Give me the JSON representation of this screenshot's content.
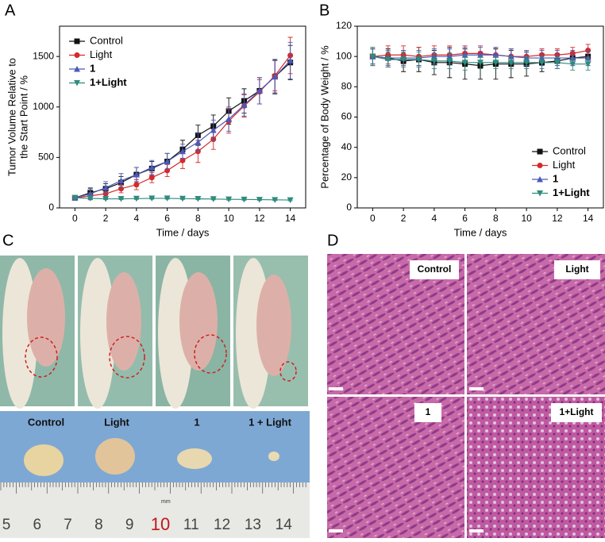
{
  "panel_labels": [
    "A",
    "B",
    "C",
    "D"
  ],
  "chart_data": [
    {
      "type": "line",
      "xlabel": "Time / days",
      "ylabel": [
        "Tumor Volume Relative to",
        "the Start Point / %"
      ],
      "x": [
        0,
        1,
        2,
        3,
        4,
        5,
        6,
        7,
        8,
        9,
        10,
        11,
        12,
        13,
        14
      ],
      "xlim": [
        -1,
        15
      ],
      "xticks": [
        0,
        2,
        4,
        6,
        8,
        10,
        12,
        14
      ],
      "ylim": [
        0,
        1800
      ],
      "yticks": [
        0,
        500,
        1000,
        1500
      ],
      "legend": "top-left",
      "series": [
        {
          "name": "Control",
          "color": "#111111",
          "marker": "square",
          "values": [
            100,
            150,
            190,
            250,
            330,
            390,
            460,
            580,
            720,
            810,
            960,
            1060,
            1160,
            1300,
            1440
          ],
          "errors": [
            15,
            40,
            50,
            60,
            70,
            70,
            80,
            90,
            100,
            110,
            130,
            120,
            130,
            170,
            170
          ]
        },
        {
          "name": "Light",
          "color": "#d42a2a",
          "marker": "circle",
          "values": [
            100,
            120,
            140,
            190,
            230,
            300,
            370,
            470,
            560,
            680,
            860,
            1010,
            1150,
            1310,
            1510
          ],
          "errors": [
            15,
            30,
            35,
            40,
            50,
            50,
            60,
            80,
            110,
            100,
            120,
            110,
            120,
            150,
            180
          ]
        },
        {
          "name": "1",
          "color": "#4a5ab8",
          "marker": "triangle-up",
          "values": [
            100,
            140,
            200,
            270,
            330,
            400,
            460,
            560,
            650,
            770,
            880,
            1020,
            1160,
            1300,
            1460
          ],
          "errors": [
            15,
            60,
            60,
            70,
            70,
            70,
            80,
            70,
            90,
            100,
            120,
            110,
            130,
            160,
            180
          ]
        },
        {
          "name": "1+Light",
          "color": "#2e8c7c",
          "marker": "triangle-down",
          "values": [
            100,
            95,
            90,
            90,
            92,
            95,
            95,
            92,
            90,
            88,
            85,
            84,
            82,
            80,
            78
          ],
          "errors": [
            8,
            10,
            8,
            8,
            8,
            8,
            8,
            8,
            8,
            8,
            8,
            8,
            8,
            8,
            8
          ]
        }
      ]
    },
    {
      "type": "line",
      "xlabel": "Time / days",
      "ylabel": [
        "Percentage of Body Weight / %"
      ],
      "x": [
        0,
        1,
        2,
        3,
        4,
        5,
        6,
        7,
        8,
        9,
        10,
        11,
        12,
        13,
        14
      ],
      "xlim": [
        -1,
        15
      ],
      "xticks": [
        0,
        2,
        4,
        6,
        8,
        10,
        12,
        14
      ],
      "ylim": [
        0,
        120
      ],
      "yticks": [
        0,
        20,
        40,
        60,
        80,
        100,
        120
      ],
      "legend": "bottom-right",
      "series": [
        {
          "name": "Control",
          "color": "#111111",
          "marker": "square",
          "values": [
            100,
            99,
            97,
            98,
            96,
            96,
            95,
            94,
            95,
            95,
            95,
            96,
            97,
            99,
            100
          ],
          "errors": [
            5,
            6,
            7,
            8,
            8,
            10,
            10,
            9,
            10,
            9,
            8,
            6,
            5,
            4,
            4
          ]
        },
        {
          "name": "Light",
          "color": "#d42a2a",
          "marker": "circle",
          "values": [
            100,
            101,
            101,
            100,
            101,
            101,
            102,
            102,
            101,
            100,
            100,
            101,
            101,
            102,
            104
          ],
          "errors": [
            6,
            6,
            6,
            6,
            6,
            6,
            5,
            5,
            5,
            5,
            4,
            4,
            4,
            4,
            4
          ]
        },
        {
          "name": "1",
          "color": "#4a5ab8",
          "marker": "triangle-up",
          "values": [
            100,
            99,
            99,
            99,
            100,
            100,
            101,
            101,
            101,
            100,
            99,
            99,
            99,
            99,
            99
          ],
          "errors": [
            5,
            5,
            5,
            5,
            5,
            5,
            5,
            5,
            5,
            5,
            5,
            5,
            5,
            5,
            5
          ]
        },
        {
          "name": "1+Light",
          "color": "#2e8c7c",
          "marker": "triangle-down",
          "values": [
            100,
            98,
            98,
            98,
            97,
            97,
            96,
            96,
            96,
            96,
            96,
            96,
            96,
            95,
            95
          ],
          "errors": [
            6,
            5,
            5,
            5,
            5,
            5,
            5,
            4,
            4,
            4,
            4,
            4,
            4,
            4,
            4
          ]
        }
      ]
    }
  ],
  "photo_c": {
    "labels": [
      "Control",
      "Light",
      "1",
      "1 + Light"
    ],
    "ruler_unit": "mm",
    "ruler": [
      5,
      6,
      7,
      8,
      9,
      10,
      11,
      12,
      13,
      14
    ]
  },
  "photo_d": {
    "labels": [
      "Control",
      "Light",
      "1",
      "1+Light"
    ]
  }
}
